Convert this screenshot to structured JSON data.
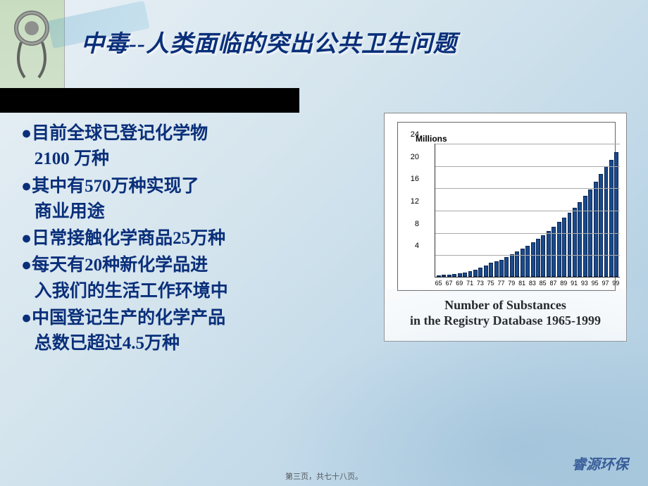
{
  "title": "中毒--人类面临的突出公共卫生问题",
  "bullets": [
    {
      "pre": "目前全球已登记化学物",
      "num": "2100",
      "post": " 万种"
    },
    {
      "pre": "其中有",
      "num": "570",
      "post": "万种实现了商业用途"
    },
    {
      "pre": "日常接触化学商品",
      "num": "25",
      "post": "万种"
    },
    {
      "pre": "每天有",
      "num": "20",
      "post": "种新化学品进入我们的生活工作环境中"
    },
    {
      "pre": "中国登记生产的化学产品总数已超过",
      "num": "4.5",
      "post": "万种"
    }
  ],
  "chart": {
    "type": "bar",
    "y_axis_label": "Millions",
    "y_ticks": [
      4,
      8,
      12,
      16,
      20,
      24
    ],
    "ymax": 24,
    "x_labels": [
      "65",
      "67",
      "69",
      "71",
      "73",
      "75",
      "77",
      "79",
      "81",
      "83",
      "85",
      "87",
      "89",
      "91",
      "93",
      "95",
      "97",
      "99"
    ],
    "values": [
      0.3,
      0.35,
      0.4,
      0.5,
      0.6,
      0.8,
      1.0,
      1.3,
      1.6,
      2.0,
      2.5,
      2.8,
      3.0,
      3.5,
      4.0,
      4.5,
      5.0,
      5.6,
      6.2,
      6.8,
      7.5,
      8.2,
      9.0,
      9.8,
      10.6,
      11.5,
      12.4,
      13.4,
      14.5,
      15.7,
      17.0,
      18.4,
      19.8,
      21.0,
      22.4
    ],
    "bar_color": "#1a4a8a",
    "grid_color": "#aaaaaa",
    "background_color": "#ffffff",
    "caption_line1": "Number of Substances",
    "caption_line2": "in the Registry Database 1965-1999",
    "caption_fontsize": 18
  },
  "footer": {
    "page": "第三页，共七十八页。",
    "brand": "睿源环保"
  },
  "colors": {
    "title_color": "#0a2f7a",
    "text_color": "#0a2f7a",
    "black_bar": "#000000"
  }
}
